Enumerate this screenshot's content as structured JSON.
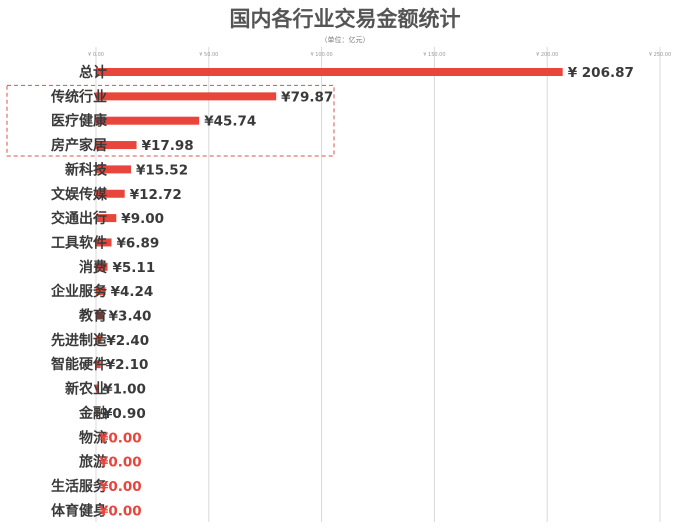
{
  "chart_data": {
    "type": "bar",
    "orientation": "horizontal",
    "title": "国内各行业交易金额统计",
    "subtitle": "（单位：亿元）",
    "xlim": [
      0,
      250
    ],
    "x_ticks": [
      "¥ 0.00",
      "¥ 50.00",
      "¥ 100.00",
      "¥ 150.00",
      "¥ 200.00",
      "¥ 250.00"
    ],
    "grid": true,
    "categories": [
      "总计",
      "传统行业",
      "医疗健康",
      "房产家居",
      "新科技",
      "文娱传媒",
      "交通出行",
      "工具软件",
      "消费",
      "企业服务",
      "教育",
      "先进制造",
      "智能硬件",
      "新农业",
      "金融",
      "物流",
      "旅游",
      "生活服务",
      "体育健身"
    ],
    "values": [
      206.87,
      79.87,
      45.74,
      17.98,
      15.52,
      12.72,
      9.0,
      6.89,
      5.11,
      4.24,
      3.4,
      2.4,
      2.1,
      1.0,
      0.9,
      0.0,
      0.0,
      0.0,
      0.0
    ],
    "value_labels": [
      "¥ 206.87",
      "¥79.87",
      "¥45.74",
      "¥17.98",
      "¥15.52",
      "¥12.72",
      "¥9.00",
      "¥6.89",
      "¥5.11",
      "¥4.24",
      "¥3.40",
      "¥2.40",
      "¥2.10",
      "¥1.00",
      "¥0.90",
      "¥0.00",
      "¥0.00",
      "¥0.00",
      "¥0.00"
    ],
    "highlighted_categories": [
      "传统行业",
      "医疗健康",
      "房产家居"
    ],
    "colors": {
      "bar": "#e8453c",
      "label": "#3a3a3a",
      "zero_label": "#e8453c",
      "highlight_box": "#d9534f",
      "grid": "#d9d9d9"
    }
  }
}
